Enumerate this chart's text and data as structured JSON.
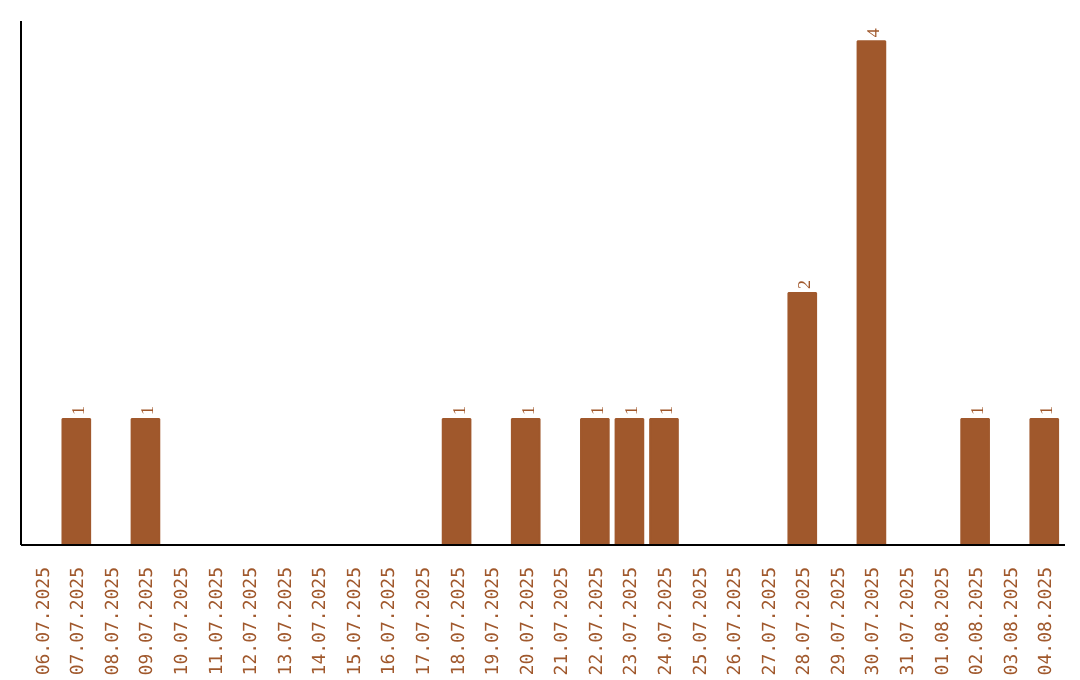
{
  "chart_data": {
    "type": "bar",
    "categories": [
      "06.07.2025",
      "07.07.2025",
      "08.07.2025",
      "09.07.2025",
      "10.07.2025",
      "11.07.2025",
      "12.07.2025",
      "13.07.2025",
      "14.07.2025",
      "15.07.2025",
      "16.07.2025",
      "17.07.2025",
      "18.07.2025",
      "19.07.2025",
      "20.07.2025",
      "21.07.2025",
      "22.07.2025",
      "23.07.2025",
      "24.07.2025",
      "25.07.2025",
      "26.07.2025",
      "27.07.2025",
      "28.07.2025",
      "29.07.2025",
      "30.07.2025",
      "31.07.2025",
      "01.08.2025",
      "02.08.2025",
      "03.08.2025",
      "04.08.2025"
    ],
    "values": [
      0,
      1,
      0,
      1,
      0,
      0,
      0,
      0,
      0,
      0,
      0,
      0,
      1,
      0,
      1,
      0,
      1,
      1,
      1,
      0,
      0,
      0,
      2,
      0,
      4,
      0,
      0,
      1,
      0,
      1
    ],
    "value_labels": [
      null,
      "1",
      null,
      "1",
      null,
      null,
      null,
      null,
      null,
      null,
      null,
      null,
      "1",
      null,
      "1",
      null,
      "1",
      "1",
      "1",
      null,
      null,
      null,
      "2",
      null,
      "4",
      null,
      null,
      "1",
      null,
      "1"
    ],
    "color": "#a0582c",
    "grid": false
  }
}
